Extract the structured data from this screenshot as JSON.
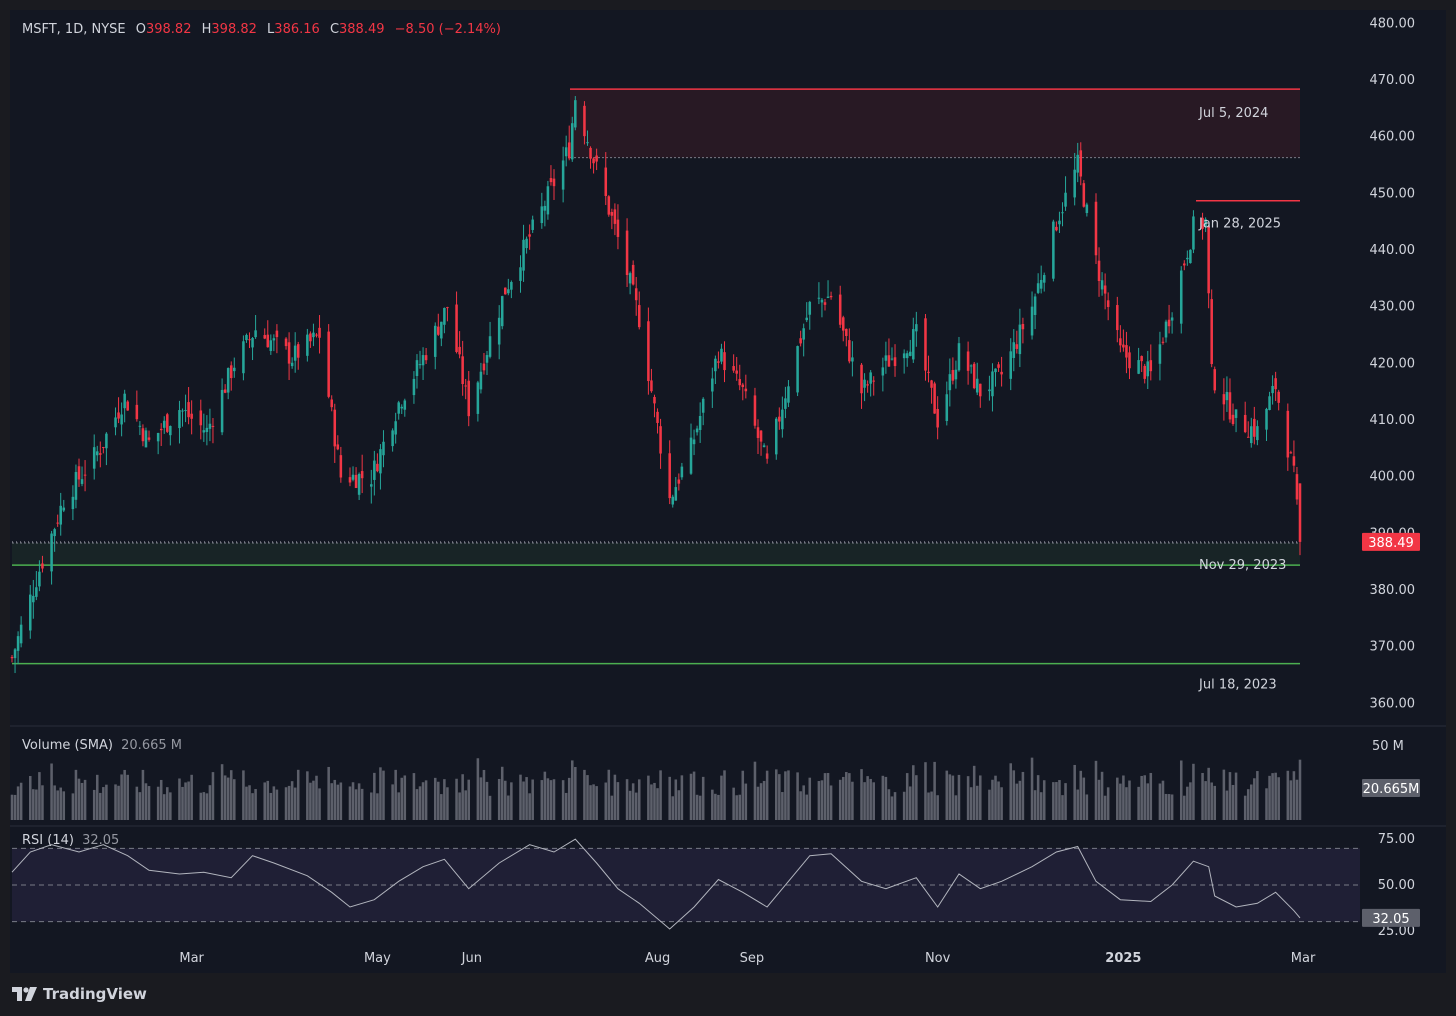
{
  "symbol": {
    "name": "MSFT, 1D, NYSE",
    "open_label": "O",
    "open": "398.82",
    "high_label": "H",
    "high": "398.82",
    "low_label": "L",
    "low": "386.16",
    "close_label": "C",
    "close": "388.49",
    "change": "−8.50 (−2.14%)"
  },
  "volume_indicator": {
    "label": "Volume (SMA)",
    "value": "20.665 M",
    "badge": "20.665M",
    "scale_top": "50 M"
  },
  "rsi_indicator": {
    "label": "RSI (14)",
    "value": "32.05",
    "badge": "32.05"
  },
  "last_price_badge": "388.49",
  "brand": "TradingView",
  "colors": {
    "up": "#26a69a",
    "down": "#f23645",
    "background": "#131722",
    "resistance": "#f23645",
    "support": "#4caf50",
    "rsi": "#b2b5be"
  },
  "chart_data": {
    "type": "candlestick",
    "title": "MSFT, 1D, NYSE",
    "y_axis": {
      "ylim": [
        356,
        482
      ],
      "ticks": [
        480,
        470,
        460,
        450,
        440,
        430,
        420,
        410,
        400,
        390,
        380,
        370,
        360
      ],
      "tick_labels": [
        "480.00",
        "470.00",
        "460.00",
        "450.00",
        "440.00",
        "430.00",
        "420.00",
        "410.00",
        "400.00",
        "390.00",
        "380.00",
        "370.00",
        "360.00"
      ]
    },
    "x_axis": {
      "labels": [
        {
          "text": "Mar",
          "date": "2024-03-01",
          "bold": false
        },
        {
          "text": "May",
          "date": "2024-05-01",
          "bold": false
        },
        {
          "text": "Jun",
          "date": "2024-06-01",
          "bold": false
        },
        {
          "text": "Aug",
          "date": "2024-08-01",
          "bold": false
        },
        {
          "text": "Sep",
          "date": "2024-09-01",
          "bold": false
        },
        {
          "text": "Nov",
          "date": "2024-11-01",
          "bold": false
        },
        {
          "text": "2025",
          "date": "2025-01-01",
          "bold": true
        },
        {
          "text": "Mar",
          "date": "2025-03-01",
          "bold": false
        }
      ]
    },
    "price_path": [
      {
        "date": "2024-01-02",
        "close": 368
      },
      {
        "date": "2024-01-10",
        "close": 382
      },
      {
        "date": "2024-01-19",
        "close": 396
      },
      {
        "date": "2024-01-31",
        "close": 405
      },
      {
        "date": "2024-02-08",
        "close": 414
      },
      {
        "date": "2024-02-16",
        "close": 406
      },
      {
        "date": "2024-02-26",
        "close": 412
      },
      {
        "date": "2024-03-06",
        "close": 408
      },
      {
        "date": "2024-03-15",
        "close": 420
      },
      {
        "date": "2024-03-22",
        "close": 426
      },
      {
        "date": "2024-04-03",
        "close": 421
      },
      {
        "date": "2024-04-12",
        "close": 425
      },
      {
        "date": "2024-04-19",
        "close": 400
      },
      {
        "date": "2024-04-29",
        "close": 400
      },
      {
        "date": "2024-05-08",
        "close": 413
      },
      {
        "date": "2024-05-16",
        "close": 421
      },
      {
        "date": "2024-05-24",
        "close": 430
      },
      {
        "date": "2024-05-31",
        "close": 412
      },
      {
        "date": "2024-06-12",
        "close": 433
      },
      {
        "date": "2024-06-24",
        "close": 447
      },
      {
        "date": "2024-07-03",
        "close": 458
      },
      {
        "date": "2024-07-05",
        "close": 467
      },
      {
        "date": "2024-07-11",
        "close": 456
      },
      {
        "date": "2024-07-19",
        "close": 442
      },
      {
        "date": "2024-07-26",
        "close": 428
      },
      {
        "date": "2024-08-05",
        "close": 396
      },
      {
        "date": "2024-08-12",
        "close": 405
      },
      {
        "date": "2024-08-21",
        "close": 422
      },
      {
        "date": "2024-08-29",
        "close": 415
      },
      {
        "date": "2024-09-06",
        "close": 402
      },
      {
        "date": "2024-09-13",
        "close": 417
      },
      {
        "date": "2024-09-20",
        "close": 430
      },
      {
        "date": "2024-09-27",
        "close": 432
      },
      {
        "date": "2024-10-07",
        "close": 415
      },
      {
        "date": "2024-10-15",
        "close": 420
      },
      {
        "date": "2024-10-25",
        "close": 425
      },
      {
        "date": "2024-11-01",
        "close": 410
      },
      {
        "date": "2024-11-08",
        "close": 422
      },
      {
        "date": "2024-11-15",
        "close": 415
      },
      {
        "date": "2024-11-22",
        "close": 418
      },
      {
        "date": "2024-12-02",
        "close": 430
      },
      {
        "date": "2024-12-10",
        "close": 445
      },
      {
        "date": "2024-12-17",
        "close": 455
      },
      {
        "date": "2024-12-23",
        "close": 438
      },
      {
        "date": "2024-12-31",
        "close": 422
      },
      {
        "date": "2025-01-10",
        "close": 418
      },
      {
        "date": "2025-01-17",
        "close": 430
      },
      {
        "date": "2025-01-24",
        "close": 444
      },
      {
        "date": "2025-01-28",
        "close": 445
      },
      {
        "date": "2025-01-30",
        "close": 418
      },
      {
        "date": "2025-02-07",
        "close": 410
      },
      {
        "date": "2025-02-14",
        "close": 408
      },
      {
        "date": "2025-02-20",
        "close": 416
      },
      {
        "date": "2025-02-26",
        "close": 400
      },
      {
        "date": "2025-02-28",
        "close": 388.49
      }
    ],
    "annotations": [
      {
        "kind": "resistance-zone",
        "label": "Jul 5, 2024",
        "top": 468.4,
        "bottom": 456.3
      },
      {
        "kind": "resistance-line",
        "label": "Jan 28, 2025",
        "price": 448.7
      },
      {
        "kind": "support-zone",
        "label": "Nov 29, 2023",
        "top": 388.3,
        "bottom": 384.4
      },
      {
        "kind": "support-line",
        "label": "Jul 18, 2023",
        "price": 367.0
      }
    ],
    "volume": {
      "sma_value_m": 20.665,
      "ylim_m": [
        0,
        50
      ]
    },
    "rsi": {
      "period": 14,
      "last": 32.05,
      "ylim": [
        20,
        80
      ],
      "ticks": [
        75,
        50,
        25
      ],
      "tick_labels": [
        "75.00",
        "50.00",
        "25.00"
      ],
      "band": [
        30,
        70
      ],
      "path": [
        {
          "date": "2024-01-02",
          "value": 57
        },
        {
          "date": "2024-01-08",
          "value": 68
        },
        {
          "date": "2024-01-15",
          "value": 72
        },
        {
          "date": "2024-01-24",
          "value": 68
        },
        {
          "date": "2024-02-01",
          "value": 72
        },
        {
          "date": "2024-02-09",
          "value": 66
        },
        {
          "date": "2024-02-16",
          "value": 58
        },
        {
          "date": "2024-02-26",
          "value": 56
        },
        {
          "date": "2024-03-05",
          "value": 57
        },
        {
          "date": "2024-03-14",
          "value": 54
        },
        {
          "date": "2024-03-21",
          "value": 66
        },
        {
          "date": "2024-03-28",
          "value": 62
        },
        {
          "date": "2024-04-08",
          "value": 55
        },
        {
          "date": "2024-04-16",
          "value": 46
        },
        {
          "date": "2024-04-22",
          "value": 38
        },
        {
          "date": "2024-04-30",
          "value": 42
        },
        {
          "date": "2024-05-08",
          "value": 52
        },
        {
          "date": "2024-05-16",
          "value": 60
        },
        {
          "date": "2024-05-23",
          "value": 64
        },
        {
          "date": "2024-05-31",
          "value": 48
        },
        {
          "date": "2024-06-10",
          "value": 62
        },
        {
          "date": "2024-06-20",
          "value": 72
        },
        {
          "date": "2024-06-28",
          "value": 68
        },
        {
          "date": "2024-07-05",
          "value": 75
        },
        {
          "date": "2024-07-12",
          "value": 62
        },
        {
          "date": "2024-07-19",
          "value": 48
        },
        {
          "date": "2024-07-26",
          "value": 40
        },
        {
          "date": "2024-08-05",
          "value": 26
        },
        {
          "date": "2024-08-13",
          "value": 38
        },
        {
          "date": "2024-08-21",
          "value": 53
        },
        {
          "date": "2024-08-29",
          "value": 46
        },
        {
          "date": "2024-09-06",
          "value": 38
        },
        {
          "date": "2024-09-13",
          "value": 52
        },
        {
          "date": "2024-09-20",
          "value": 66
        },
        {
          "date": "2024-09-27",
          "value": 67
        },
        {
          "date": "2024-10-07",
          "value": 52
        },
        {
          "date": "2024-10-15",
          "value": 48
        },
        {
          "date": "2024-10-25",
          "value": 54
        },
        {
          "date": "2024-11-01",
          "value": 38
        },
        {
          "date": "2024-11-08",
          "value": 56
        },
        {
          "date": "2024-11-15",
          "value": 48
        },
        {
          "date": "2024-11-22",
          "value": 52
        },
        {
          "date": "2024-12-02",
          "value": 60
        },
        {
          "date": "2024-12-10",
          "value": 68
        },
        {
          "date": "2024-12-17",
          "value": 71
        },
        {
          "date": "2024-12-23",
          "value": 52
        },
        {
          "date": "2024-12-31",
          "value": 42
        },
        {
          "date": "2025-01-10",
          "value": 41
        },
        {
          "date": "2025-01-17",
          "value": 50
        },
        {
          "date": "2025-01-24",
          "value": 63
        },
        {
          "date": "2025-01-29",
          "value": 60
        },
        {
          "date": "2025-01-31",
          "value": 44
        },
        {
          "date": "2025-02-07",
          "value": 38
        },
        {
          "date": "2025-02-14",
          "value": 40
        },
        {
          "date": "2025-02-20",
          "value": 46
        },
        {
          "date": "2025-02-26",
          "value": 36
        },
        {
          "date": "2025-02-28",
          "value": 32.05
        }
      ]
    }
  }
}
